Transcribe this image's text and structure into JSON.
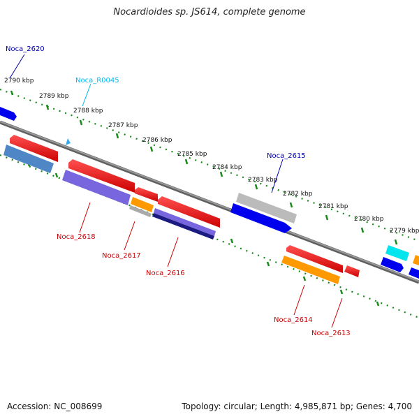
{
  "title": "Nocardioides sp. JS614, complete genome",
  "footer": {
    "accession": "Accession: NC_008699",
    "topology": "Topology: circular; Length: 4,985,871 bp; Genes: 4,700"
  },
  "scale_labels": [
    "2790 kbp",
    "2789 kbp",
    "2788 kbp",
    "2787 kbp",
    "2786 kbp",
    "2785 kbp",
    "2784 kbp",
    "2783 kbp",
    "2782 kbp",
    "2781 kbp",
    "2780 kbp",
    "2779 kbp"
  ],
  "gene_labels": [
    "Noca_2620",
    "Noca_R0045",
    "Noca_2615",
    "Noca_2618",
    "Noca_2617",
    "Noca_2616",
    "Noca_2614",
    "Noca_2613"
  ],
  "colors": {
    "backbone": "#7f7f7f",
    "ticks": "#1a8a1a",
    "red": "#ee0000",
    "blue": "#0000ee",
    "purple": "#7766dd",
    "navy": "#1a1a80",
    "steelblue": "#4f86c6",
    "orange": "#ff9900",
    "gray": "#bbbbbb",
    "cyan": "#00e5ee",
    "label_blue": "#0000aa",
    "label_cyan": "#00bbee",
    "label_red": "#cc0000"
  }
}
